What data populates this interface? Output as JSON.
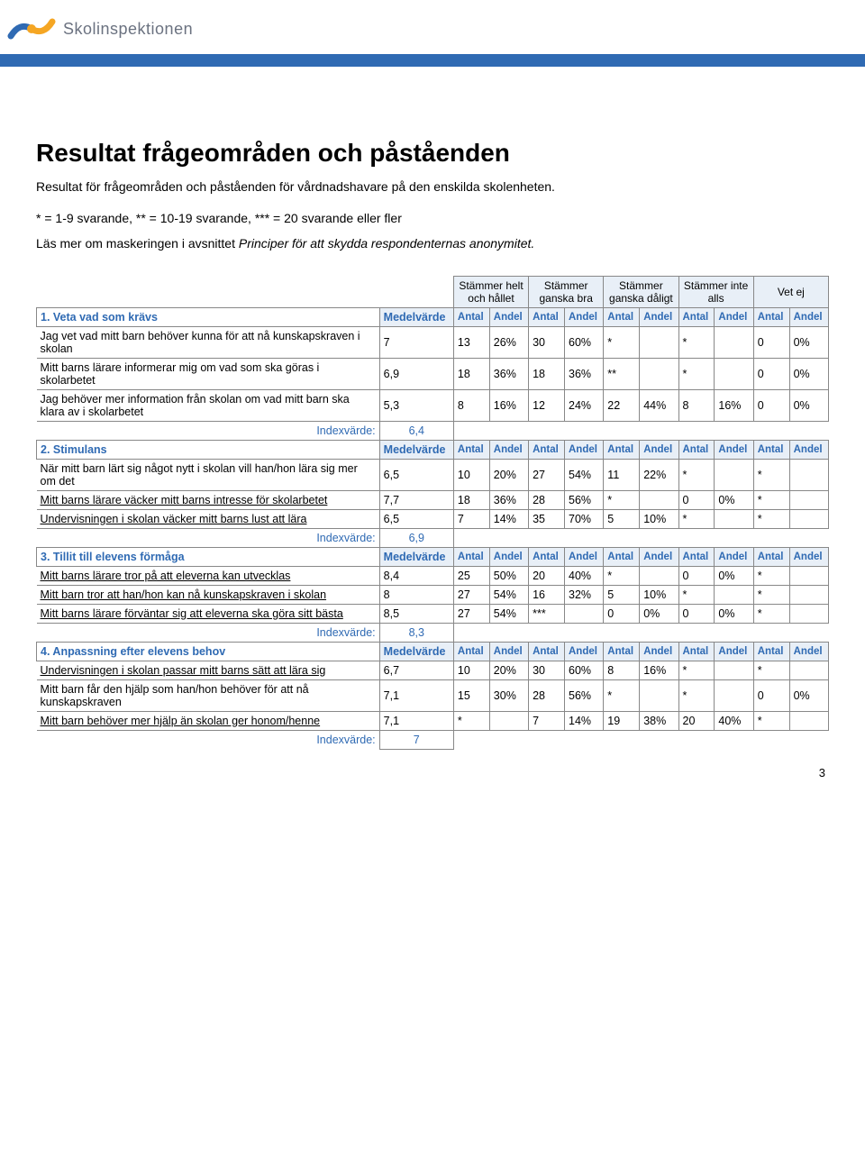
{
  "logo_text": "Skolinspektionen",
  "logo_colors": {
    "blue": "#2f6ab3",
    "yellow": "#f5a623"
  },
  "bar_color": "#2f6ab3",
  "title": "Resultat frågeområden och påståenden",
  "intro": "Resultat för frågeområden och påståenden för vårdnadshavare på den enskilda skolenheten.",
  "legend": "* = 1-9 svarande, ** = 10-19 svarande, *** = 20 svarande eller fler",
  "masking_prefix": "Läs mer om maskeringen i avsnittet ",
  "masking_italic": "Principer för att skydda respondenternas anonymitet.",
  "columns": {
    "c1": "Stämmer helt och hållet",
    "c2": "Stämmer ganska bra",
    "c3": "Stämmer ganska dåligt",
    "c4": "Stämmer inte alls",
    "c5": "Vet ej",
    "mv": "Medelvärde",
    "antal": "Antal",
    "andel": "Andel"
  },
  "index_label": "Indexvärde:",
  "sections": [
    {
      "title": "1. Veta vad som krävs",
      "rows": [
        {
          "label": "Jag vet vad mitt barn behöver kunna för att nå kunskapskraven i skolan",
          "mv": "7",
          "c": [
            "13",
            "26%",
            "30",
            "60%",
            "*",
            "",
            "*",
            "",
            "0",
            "0%"
          ]
        },
        {
          "label": "Mitt barns lärare informerar mig om vad som ska göras i skolarbetet",
          "mv": "6,9",
          "c": [
            "18",
            "36%",
            "18",
            "36%",
            "**",
            "",
            "*",
            "",
            "0",
            "0%"
          ]
        },
        {
          "label": "Jag behöver mer information från skolan om vad mitt barn ska klara av i skolarbetet",
          "mv": "5,3",
          "c": [
            "8",
            "16%",
            "12",
            "24%",
            "22",
            "44%",
            "8",
            "16%",
            "0",
            "0%"
          ]
        }
      ],
      "index": "6,4"
    },
    {
      "title": "2. Stimulans",
      "rows": [
        {
          "label": "När mitt barn lärt sig något nytt i skolan vill han/hon lära sig mer om det",
          "mv": "6,5",
          "c": [
            "10",
            "20%",
            "27",
            "54%",
            "11",
            "22%",
            "*",
            "",
            "*",
            ""
          ]
        },
        {
          "label": "Mitt barns lärare väcker mitt barns intresse för skolarbetet",
          "underline": true,
          "mv": "7,7",
          "c": [
            "18",
            "36%",
            "28",
            "56%",
            "*",
            "",
            "0",
            "0%",
            "*",
            ""
          ]
        },
        {
          "label": "Undervisningen i skolan väcker mitt barns lust att lära",
          "underline": true,
          "mv": "6,5",
          "c": [
            "7",
            "14%",
            "35",
            "70%",
            "5",
            "10%",
            "*",
            "",
            "*",
            ""
          ]
        }
      ],
      "index": "6,9"
    },
    {
      "title": "3. Tillit till elevens förmåga",
      "rows": [
        {
          "label": "Mitt barns lärare tror på att eleverna kan utvecklas",
          "underline": true,
          "mv": "8,4",
          "c": [
            "25",
            "50%",
            "20",
            "40%",
            "*",
            "",
            "0",
            "0%",
            "*",
            ""
          ]
        },
        {
          "label": "Mitt barn tror att han/hon kan nå kunskapskraven i skolan",
          "underline": true,
          "mv": "8",
          "c": [
            "27",
            "54%",
            "16",
            "32%",
            "5",
            "10%",
            "*",
            "",
            "*",
            ""
          ]
        },
        {
          "label": "Mitt barns lärare förväntar sig att eleverna ska göra sitt bästa",
          "underline": true,
          "mv": "8,5",
          "c": [
            "27",
            "54%",
            "***",
            "",
            "0",
            "0%",
            "0",
            "0%",
            "*",
            ""
          ]
        }
      ],
      "index": "8,3"
    },
    {
      "title": "4. Anpassning efter elevens behov",
      "rows": [
        {
          "label": "Undervisningen i skolan passar mitt barns sätt att lära sig",
          "underline": true,
          "mv": "6,7",
          "c": [
            "10",
            "20%",
            "30",
            "60%",
            "8",
            "16%",
            "*",
            "",
            "*",
            ""
          ]
        },
        {
          "label": "Mitt barn får den hjälp som han/hon behöver för att nå kunskapskraven",
          "mv": "7,1",
          "c": [
            "15",
            "30%",
            "28",
            "56%",
            "*",
            "",
            "*",
            "",
            "0",
            "0%"
          ]
        },
        {
          "label": "Mitt barn behöver mer hjälp än skolan ger honom/henne",
          "underline": true,
          "mv": "7,1",
          "c": [
            "*",
            "",
            "7",
            "14%",
            "19",
            "38%",
            "20",
            "40%",
            "*",
            ""
          ]
        }
      ],
      "index": "7"
    }
  ],
  "page_number": "3"
}
